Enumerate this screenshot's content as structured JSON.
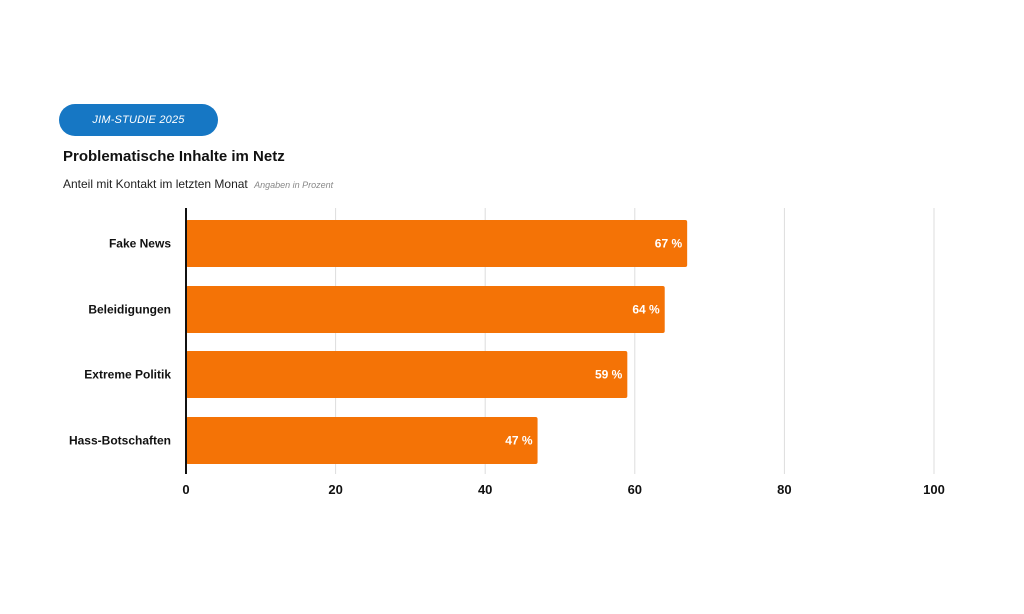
{
  "badge": {
    "label": "JIM-STUDIE 2025"
  },
  "chart_data": {
    "type": "bar",
    "orientation": "horizontal",
    "title": "Problematische Inhalte im Netz",
    "subtitle": "Anteil mit Kontakt im letzten Monat",
    "note": "Angaben in Prozent",
    "categories": [
      "Fake News",
      "Beleidigungen",
      "Extreme Politik",
      "Hass-Botschaften"
    ],
    "values": [
      67,
      64,
      59,
      47
    ],
    "value_labels": [
      "67 %",
      "64 %",
      "59 %",
      "47 %"
    ],
    "xlim": [
      0,
      100
    ],
    "xticks": [
      0,
      20,
      40,
      60,
      80,
      100
    ],
    "grid": true,
    "bar_color": "#f47306",
    "grid_color": "#dddddd",
    "axis_color": "#111111"
  }
}
